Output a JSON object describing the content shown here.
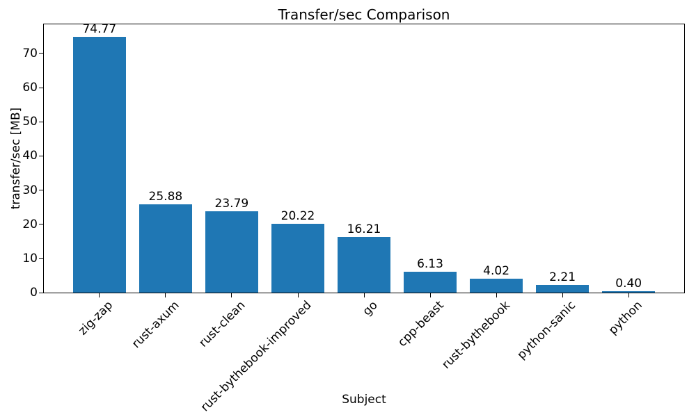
{
  "figure": {
    "background_color": "#ffffff",
    "text_color": "#000000",
    "spine_color": "#000000"
  },
  "chart_data": {
    "type": "bar",
    "title": "Transfer/sec Comparison",
    "xlabel": "Subject",
    "ylabel": "transfer/sec [MB]",
    "categories": [
      "zig-zap",
      "rust-axum",
      "rust-clean",
      "rust-bythebook-improved",
      "go",
      "cpp-beast",
      "rust-bythebook",
      "python-sanic",
      "python"
    ],
    "values": [
      74.77,
      25.88,
      23.79,
      20.22,
      16.21,
      6.13,
      4.02,
      2.21,
      0.4
    ],
    "value_labels": [
      "74.77",
      "25.88",
      "23.79",
      "20.22",
      "16.21",
      "6.13",
      "4.02",
      "2.21",
      "0.40"
    ],
    "ylim": [
      0,
      78.51
    ],
    "yticks": [
      0,
      10,
      20,
      30,
      40,
      50,
      60,
      70
    ],
    "bar_color": "#1f77b4",
    "bar_width_ratio": 0.8,
    "x_tick_rotation_deg": 45,
    "grid": false,
    "legend": "none"
  }
}
